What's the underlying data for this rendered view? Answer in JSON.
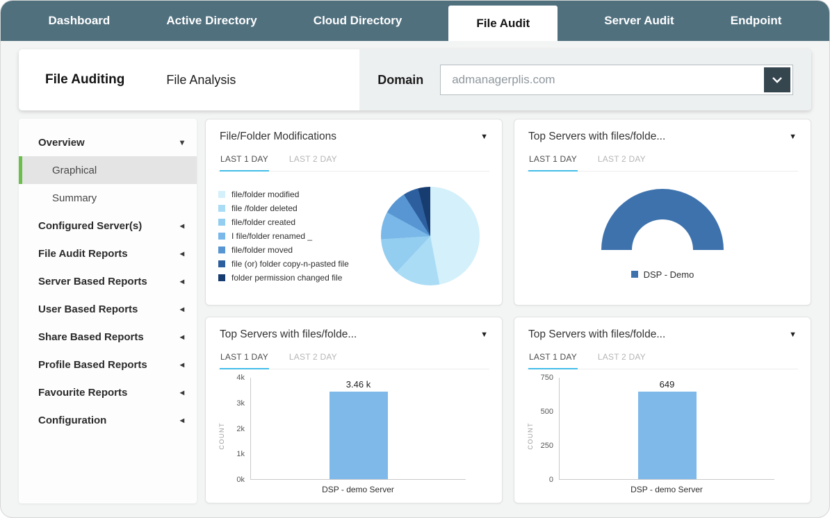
{
  "icons": {
    "caret_down": "▼",
    "side_caret_down": "▾",
    "side_caret_left": "◂"
  },
  "colors": {
    "nav_bg": "#50707e",
    "accent_green": "#6abf4b",
    "tab_underline": "#41bde8",
    "bar_blue": "#7fb9e9",
    "gauge_blue": "#3e72ad"
  },
  "nav": {
    "items": [
      {
        "label": "Dashboard",
        "active": false
      },
      {
        "label": "Active Directory",
        "active": false
      },
      {
        "label": "Cloud Directory",
        "active": false
      },
      {
        "label": "File Audit",
        "active": true
      },
      {
        "label": "Server Audit",
        "active": false
      },
      {
        "label": "Endpoint",
        "active": false
      }
    ]
  },
  "header": {
    "title": "File Auditing",
    "subtitle": "File Analysis",
    "domain_label": "Domain",
    "domain_value": "admanagerplis.com"
  },
  "sidebar": {
    "items": [
      {
        "label": "Overview",
        "type": "parent",
        "caret": "down"
      },
      {
        "label": "Graphical",
        "type": "child",
        "selected": true
      },
      {
        "label": "Summary",
        "type": "child"
      },
      {
        "label": "Configured Server(s)",
        "type": "parent",
        "caret": "left"
      },
      {
        "label": "File Audit Reports",
        "type": "parent",
        "caret": "left"
      },
      {
        "label": "Server Based Reports",
        "type": "parent",
        "caret": "left"
      },
      {
        "label": "User Based Reports",
        "type": "parent",
        "caret": "left"
      },
      {
        "label": "Share Based Reports",
        "type": "parent",
        "caret": "left"
      },
      {
        "label": "Profile Based Reports",
        "type": "parent",
        "caret": "left"
      },
      {
        "label": "Favourite Reports",
        "type": "parent",
        "caret": "left"
      },
      {
        "label": "Configuration",
        "type": "parent",
        "caret": "left"
      }
    ]
  },
  "cards": [
    {
      "title": "File/Folder Modifications",
      "tabs": [
        "LAST 1 DAY",
        "LAST 2 DAY"
      ],
      "chart": {
        "type": "pie",
        "labels": [
          "file/folder modified",
          "file /folder deleted",
          "file/folder created",
          "I file/folder renamed _",
          "file/folder moved",
          "file (or) folder copy-n-pasted file",
          "folder permission changed  file"
        ],
        "values": [
          47,
          15,
          12,
          9,
          8,
          5,
          4
        ],
        "colors": [
          "#d3f0fb",
          "#aadcf5",
          "#93cdf0",
          "#79b8e8",
          "#5796d2",
          "#2d5f9e",
          "#173c70"
        ]
      }
    },
    {
      "title": "Top Servers with files/folde...",
      "tabs": [
        "LAST 1 DAY",
        "LAST 2 DAY"
      ],
      "chart": {
        "type": "gauge",
        "legend": "DSP - Demo",
        "color": "#3e72ad",
        "value_pct": 100
      }
    },
    {
      "title": "Top Servers with files/folde...",
      "tabs": [
        "LAST 1 DAY",
        "LAST 2 DAY"
      ],
      "chart": {
        "type": "bar",
        "ylabel": "COUNT",
        "xlabel": "DSP - demo  Server",
        "value": 3460,
        "value_label": "3.46 k",
        "ymax": 4000,
        "yticks": [
          {
            "label": "4k",
            "value": 4000
          },
          {
            "label": "3k",
            "value": 3000
          },
          {
            "label": "2k",
            "value": 2000
          },
          {
            "label": "1k",
            "value": 1000
          },
          {
            "label": "0k",
            "value": 0
          }
        ]
      }
    },
    {
      "title": "Top Servers with files/folde...",
      "tabs": [
        "LAST 1 DAY",
        "LAST 2 DAY"
      ],
      "chart": {
        "type": "bar",
        "ylabel": "COUNT",
        "xlabel": "DSP - demo  Server",
        "value": 649,
        "value_label": "649",
        "ymax": 750,
        "yticks": [
          {
            "label": "750",
            "value": 750
          },
          {
            "label": "500",
            "value": 500
          },
          {
            "label": "250",
            "value": 250
          },
          {
            "label": "0",
            "value": 0
          }
        ]
      }
    }
  ]
}
